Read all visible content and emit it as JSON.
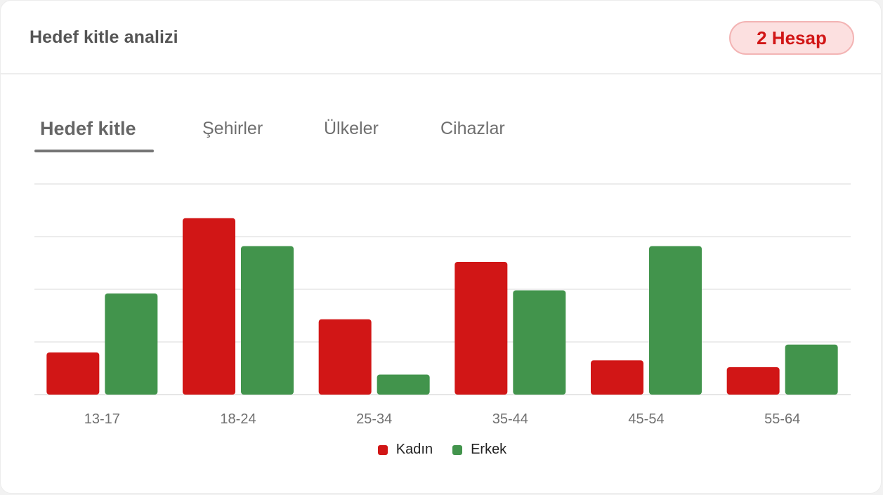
{
  "header": {
    "title": "Hedef kitle analizi",
    "badge": "2 Hesap"
  },
  "tabs": [
    {
      "label": "Hedef kitle",
      "active": true
    },
    {
      "label": "Şehirler",
      "active": false
    },
    {
      "label": "Ülkeler",
      "active": false
    },
    {
      "label": "Cihazlar",
      "active": false
    }
  ],
  "colors": {
    "kadin": "#d11616",
    "erkek": "#42944c",
    "grid": "#e6e6e6"
  },
  "chart_data": {
    "type": "bar",
    "categories": [
      "13-17",
      "18-24",
      "25-34",
      "35-44",
      "45-54",
      "55-64"
    ],
    "series": [
      {
        "name": "Kadın",
        "values": [
          8,
          33.5,
          14.3,
          25.2,
          6.5,
          5.2
        ]
      },
      {
        "name": "Erkek",
        "values": [
          19.2,
          28.2,
          3.8,
          19.8,
          28.2,
          9.5
        ]
      }
    ],
    "ylim": [
      0,
      40
    ],
    "grid": true,
    "legend": "bottom-center"
  }
}
